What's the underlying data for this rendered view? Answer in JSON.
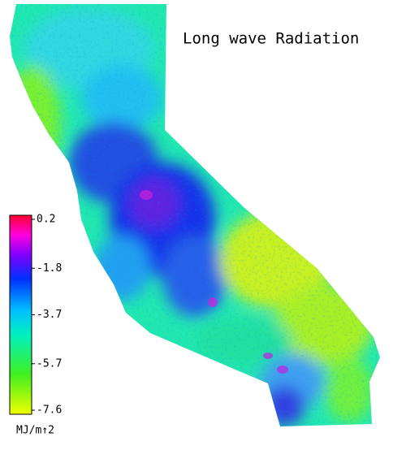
{
  "title": "Long wave Radiation",
  "colorbar": {
    "range": [
      -7.6,
      0.2
    ],
    "ticks": [
      0.2,
      -1.8,
      -3.7,
      -5.7,
      -7.6
    ],
    "unit": "MJ/m↑2"
  }
}
